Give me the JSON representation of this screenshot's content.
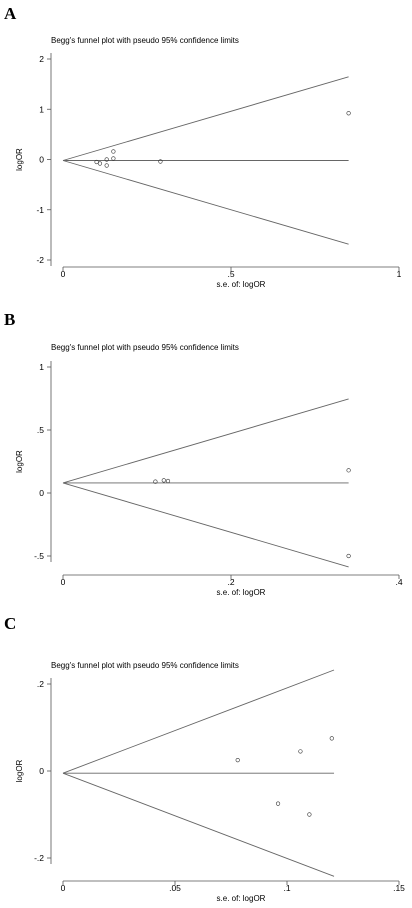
{
  "chart_data": [
    {
      "panel_label": "A",
      "type": "scatter",
      "title": "Begg's funnel plot with pseudo 95% confidence limits",
      "xlabel": "s.e. of: logOR",
      "ylabel": "logOR",
      "xlim": [
        0,
        1
      ],
      "ylim": [
        -2,
        2
      ],
      "xticks": [
        "0",
        ".5",
        "1"
      ],
      "yticks": [
        "2",
        "1",
        "0",
        "-1",
        "-2"
      ],
      "grid": false,
      "pooled_estimate": -0.02,
      "funnel_max_se": 0.85,
      "points": [
        {
          "x": 0.1,
          "y": -0.05
        },
        {
          "x": 0.11,
          "y": -0.08
        },
        {
          "x": 0.13,
          "y": -0.12
        },
        {
          "x": 0.13,
          "y": 0.0
        },
        {
          "x": 0.15,
          "y": 0.16
        },
        {
          "x": 0.15,
          "y": 0.02
        },
        {
          "x": 0.29,
          "y": -0.04
        },
        {
          "x": 0.85,
          "y": 0.92
        }
      ]
    },
    {
      "panel_label": "B",
      "type": "scatter",
      "title": "Begg's funnel plot with pseudo 95% confidence limits",
      "xlabel": "s.e. of: logOR",
      "ylabel": "logOR",
      "xlim": [
        0,
        0.4
      ],
      "ylim": [
        -0.5,
        1
      ],
      "xticks": [
        "0",
        ".2",
        ".4"
      ],
      "yticks": [
        "1",
        ".5",
        "0",
        "-.5"
      ],
      "grid": false,
      "pooled_estimate": 0.08,
      "funnel_max_se": 0.34,
      "points": [
        {
          "x": 0.11,
          "y": 0.09
        },
        {
          "x": 0.12,
          "y": 0.1
        },
        {
          "x": 0.125,
          "y": 0.095
        },
        {
          "x": 0.34,
          "y": 0.18
        },
        {
          "x": 0.34,
          "y": -0.5
        }
      ]
    },
    {
      "panel_label": "C",
      "type": "scatter",
      "title": "Begg's funnel plot with pseudo 95% confidence limits",
      "xlabel": "s.e. of: logOR",
      "ylabel": "logOR",
      "xlim": [
        0,
        0.15
      ],
      "ylim": [
        -0.2,
        0.2
      ],
      "xticks": [
        "0",
        ".05",
        ".1",
        ".15"
      ],
      "yticks": [
        ".2",
        "0",
        "-.2"
      ],
      "grid": false,
      "pooled_estimate": -0.005,
      "funnel_max_se": 0.121,
      "points": [
        {
          "x": 0.078,
          "y": 0.025
        },
        {
          "x": 0.096,
          "y": -0.075
        },
        {
          "x": 0.106,
          "y": 0.045
        },
        {
          "x": 0.11,
          "y": -0.1
        },
        {
          "x": 0.12,
          "y": 0.075
        }
      ]
    }
  ]
}
